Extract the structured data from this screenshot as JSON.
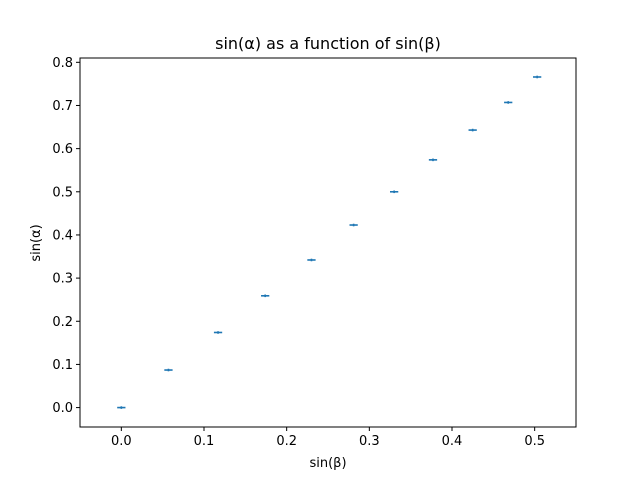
{
  "chart_data": {
    "type": "scatter",
    "title": "sin(α) as a function of sin(β)",
    "xlabel": "sin(β)",
    "ylabel": "sin(α)",
    "xlim": [
      -0.05,
      0.55
    ],
    "ylim": [
      -0.045,
      0.81
    ],
    "x_ticks": [
      0.0,
      0.1,
      0.2,
      0.3,
      0.4,
      0.5
    ],
    "x_tick_labels": [
      "0.0",
      "0.1",
      "0.2",
      "0.3",
      "0.4",
      "0.5"
    ],
    "y_ticks": [
      0.0,
      0.1,
      0.2,
      0.3,
      0.4,
      0.5,
      0.6,
      0.7,
      0.8
    ],
    "y_tick_labels": [
      "0.0",
      "0.1",
      "0.2",
      "0.3",
      "0.4",
      "0.5",
      "0.6",
      "0.7",
      "0.8"
    ],
    "grid": false,
    "marker": "errorbar",
    "color": "#1f77b4",
    "series": [
      {
        "x": [
          0.0,
          0.057,
          0.117,
          0.174,
          0.23,
          0.281,
          0.33,
          0.377,
          0.425,
          0.468,
          0.503
        ],
        "y": [
          0.0,
          0.087,
          0.174,
          0.259,
          0.342,
          0.423,
          0.5,
          0.574,
          0.643,
          0.707,
          0.766
        ],
        "xerr": [
          0.005,
          0.005,
          0.005,
          0.005,
          0.005,
          0.005,
          0.005,
          0.005,
          0.005,
          0.005,
          0.005
        ],
        "yerr": [
          0.003,
          0.003,
          0.003,
          0.003,
          0.003,
          0.003,
          0.003,
          0.003,
          0.003,
          0.003,
          0.003
        ]
      }
    ]
  }
}
